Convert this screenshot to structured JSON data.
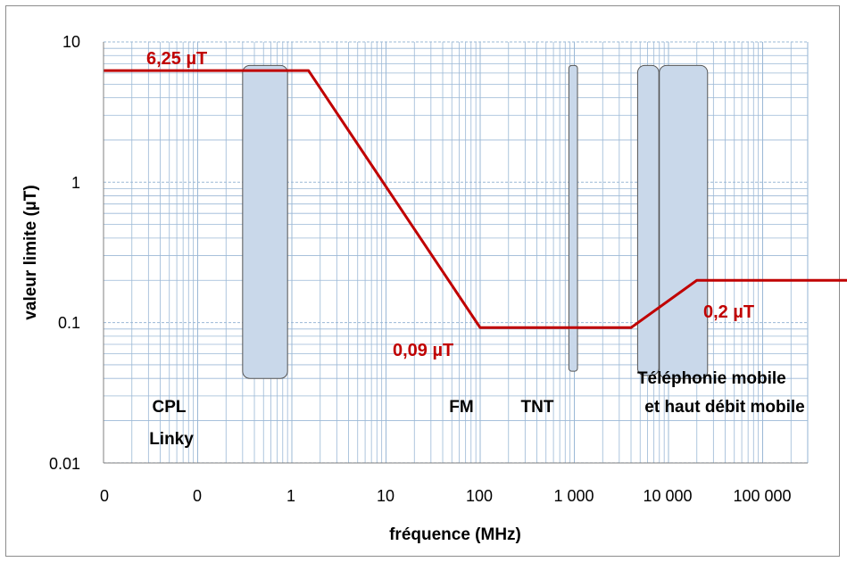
{
  "chart_data": {
    "type": "line",
    "xscale": "log",
    "yscale": "log",
    "xlabel": "fréquence (MHz)",
    "ylabel": "valeur limite  (µT)",
    "x_tick_labels": [
      "0",
      "0",
      "1",
      "10",
      "100",
      "1 000",
      "10 000",
      "100 000"
    ],
    "y_tick_labels": [
      "10",
      "1",
      "0.1",
      "0.01"
    ],
    "ylim": [
      0.01,
      10
    ],
    "grid": true,
    "series": [
      {
        "color": "#c00000",
        "points": [
          {
            "x": 0.001,
            "y": 6.25
          },
          {
            "x": 0.15,
            "y": 6.25
          },
          {
            "x": 10,
            "y": 0.092
          },
          {
            "x": 400,
            "y": 0.092
          },
          {
            "x": 2000,
            "y": 0.2
          },
          {
            "x": 300000,
            "y": 0.2
          }
        ]
      }
    ],
    "bands": [
      {
        "label": "CPL\nLinky",
        "x_start": 0.03,
        "x_end": 0.09,
        "y_start": 0.04,
        "y_end": 6.8
      },
      {
        "label": "FM",
        "x_start": 87.5,
        "x_end": 108,
        "y_start": 0.045,
        "y_end": 6.8
      },
      {
        "label": "TNT",
        "x_start": 470,
        "x_end": 790,
        "y_start": 0.042,
        "y_end": 6.8
      },
      {
        "label": "Téléphonie mobile\net haut débit mobile",
        "x_start": 800,
        "x_end": 2600,
        "y_start": 0.04,
        "y_end": 6.8
      }
    ],
    "annotations": [
      {
        "text": "6,25 µT"
      },
      {
        "text": "0,09 µT"
      },
      {
        "text": "0,2 µT"
      }
    ],
    "colors": {
      "grid": "#9bb8d6",
      "band_fill": "#c9d8ea",
      "band_stroke": "#555555",
      "line": "#c00000"
    }
  }
}
